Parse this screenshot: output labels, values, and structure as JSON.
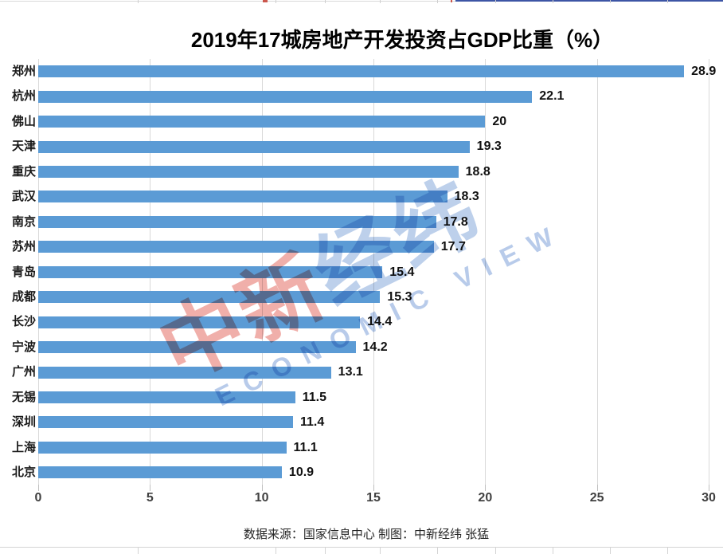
{
  "chart_data": {
    "type": "bar",
    "orientation": "horizontal",
    "title": "2019年17城房地产开发投资占GDP比重（%）",
    "categories": [
      "郑州",
      "杭州",
      "佛山",
      "天津",
      "重庆",
      "武汉",
      "南京",
      "苏州",
      "青岛",
      "成都",
      "长沙",
      "宁波",
      "广州",
      "无锡",
      "深圳",
      "上海",
      "北京"
    ],
    "values": [
      28.9,
      22.1,
      20,
      19.3,
      18.8,
      18.3,
      17.8,
      17.7,
      15.4,
      15.3,
      14.4,
      14.2,
      13.1,
      11.5,
      11.4,
      11.1,
      10.9
    ],
    "value_labels": [
      "28.9",
      "22.1",
      "20",
      "19.3",
      "18.8",
      "18.3",
      "17.8",
      "17.7",
      "15.4",
      "15.3",
      "14.4",
      "14.2",
      "13.1",
      "11.5",
      "11.4",
      "11.1",
      "10.9"
    ],
    "xlim": [
      0,
      30
    ],
    "xticks": [
      0,
      5,
      10,
      15,
      20,
      25,
      30
    ],
    "grid": "vertical",
    "legend": "none",
    "bar_color": "#5b9bd5"
  },
  "footer": {
    "text": "数据来源：国家信息中心  制图：中新经纬 张猛"
  },
  "watermark": {
    "cn_red": "中新",
    "cn_blue": "经纬",
    "en": "ECONOMIC VIEW",
    "red_color": "#e26055",
    "blue_color": "#769cd6"
  },
  "colors": {
    "bar": "#5b9bd5",
    "gridline": "#d9d9d9",
    "axis_text": "#404040",
    "top_border_navy": "#3d55a5"
  }
}
